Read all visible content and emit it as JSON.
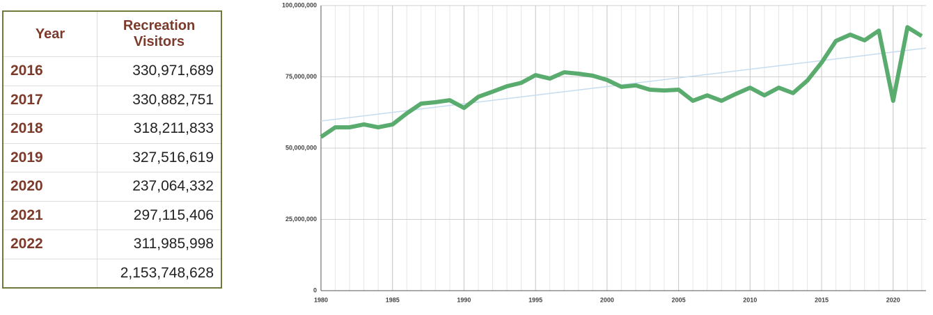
{
  "table": {
    "headers": [
      "Year",
      "Recreation Visitors"
    ],
    "rows": [
      [
        "2016",
        "330,971,689"
      ],
      [
        "2017",
        "330,882,751"
      ],
      [
        "2018",
        "318,211,833"
      ],
      [
        "2019",
        "327,516,619"
      ],
      [
        "2020",
        "237,064,332"
      ],
      [
        "2021",
        "297,115,406"
      ],
      [
        "2022",
        "311,985,998"
      ]
    ],
    "total": "2,153,748,628"
  },
  "chart_data": {
    "type": "line",
    "x": [
      1980,
      1981,
      1982,
      1983,
      1984,
      1985,
      1986,
      1987,
      1988,
      1989,
      1990,
      1991,
      1992,
      1993,
      1994,
      1995,
      1996,
      1997,
      1998,
      1999,
      2000,
      2001,
      2002,
      2003,
      2004,
      2005,
      2006,
      2007,
      2008,
      2009,
      2010,
      2011,
      2012,
      2013,
      2014,
      2015,
      2016,
      2017,
      2018,
      2019,
      2020,
      2021,
      2022
    ],
    "series": [
      {
        "color": "#5aab6e",
        "values": [
          53900000,
          57300000,
          57300000,
          58300000,
          57300000,
          58300000,
          62200000,
          65600000,
          66100000,
          66800000,
          64100000,
          68000000,
          69800000,
          71700000,
          72900000,
          75600000,
          74400000,
          76600000,
          76100000,
          75400000,
          73900000,
          71500000,
          72000000,
          70500000,
          70200000,
          70500000,
          66600000,
          68500000,
          66600000,
          69000000,
          71200000,
          68500000,
          71200000,
          69300000,
          73700000,
          80000000,
          87600000,
          89800000,
          87800000,
          91200000,
          66600000,
          92400000,
          89300000
        ]
      }
    ],
    "trend": {
      "color": "#c5dcef",
      "x": [
        1980,
        2022.3
      ],
      "values": [
        59500000,
        85100000
      ]
    },
    "xlim": [
      1980,
      2022.3
    ],
    "xticks": [
      1980,
      1985,
      1990,
      1995,
      2000,
      2005,
      2010,
      2015,
      2020
    ],
    "ylim": [
      0,
      100000000
    ],
    "yticks": [
      0,
      {
        "value": 25000000,
        "label": "25,000,000"
      },
      {
        "value": 50000000,
        "label": "50,000,000"
      },
      {
        "value": 75000000,
        "label": "75,000,000"
      },
      {
        "value": 100000000,
        "label": "100,000,000"
      }
    ],
    "grid": true
  }
}
